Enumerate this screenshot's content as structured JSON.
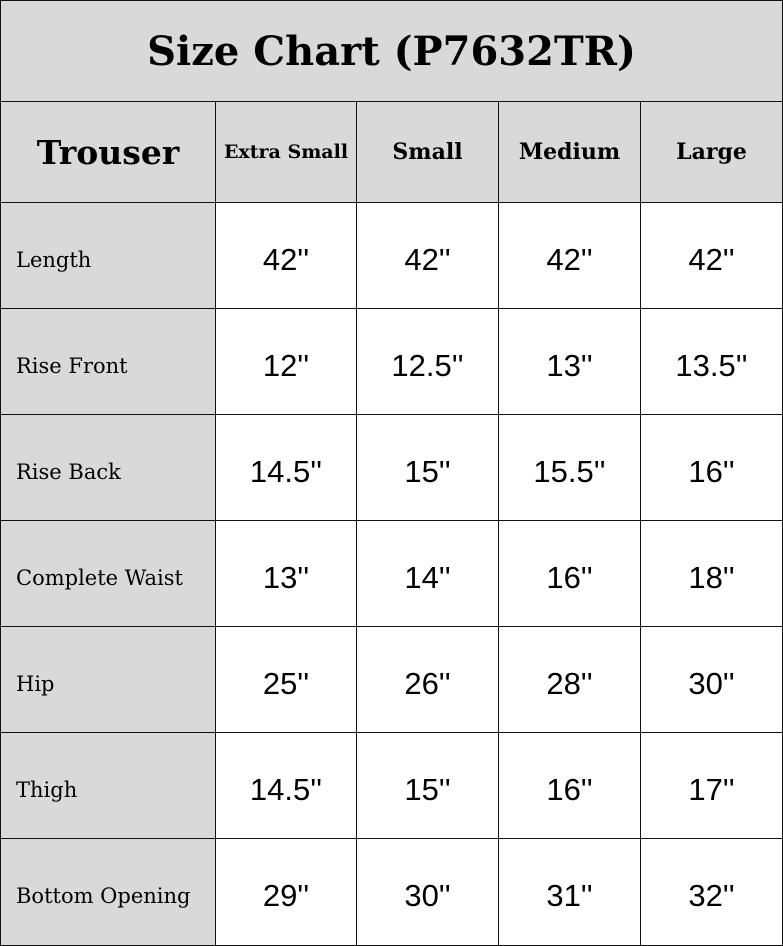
{
  "title": "Size Chart (P7632TR)",
  "header": {
    "corner": "Trouser",
    "sizes": [
      "Extra Small",
      "Small",
      "Medium",
      "Large"
    ]
  },
  "rows": [
    {
      "label": "Length",
      "values": [
        "42''",
        "42''",
        "42''",
        "42''"
      ]
    },
    {
      "label": "Rise Front",
      "values": [
        "12''",
        "12.5''",
        "13''",
        "13.5''"
      ]
    },
    {
      "label": "Rise Back",
      "values": [
        "14.5''",
        "15''",
        "15.5''",
        "16''"
      ]
    },
    {
      "label": "Complete Waist",
      "values": [
        "13''",
        "14''",
        "16''",
        "18''"
      ]
    },
    {
      "label": "Hip",
      "values": [
        "25''",
        "26''",
        "28''",
        "30''"
      ]
    },
    {
      "label": "Thigh",
      "values": [
        "14.5''",
        "15''",
        "16''",
        "17''"
      ]
    },
    {
      "label": "Bottom Opening",
      "values": [
        "29''",
        "30''",
        "31''",
        "32''"
      ]
    }
  ],
  "colors": {
    "header_bg": "#d9d9d9",
    "cell_bg": "#ffffff",
    "border": "#111111"
  }
}
